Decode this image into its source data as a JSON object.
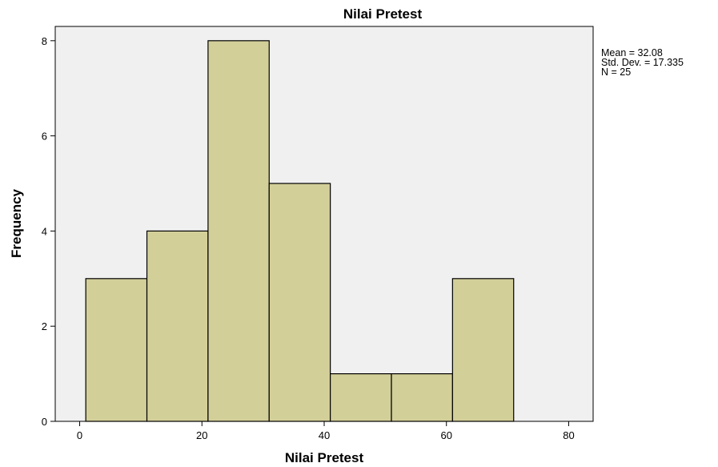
{
  "chart_data": {
    "type": "bar",
    "title": "Nilai Pretest",
    "xlabel": "Nilai Pretest",
    "ylabel": "Frequency",
    "bins": [
      {
        "start": 1,
        "end": 11,
        "count": 3
      },
      {
        "start": 11,
        "end": 21,
        "count": 4
      },
      {
        "start": 21,
        "end": 31,
        "count": 8
      },
      {
        "start": 31,
        "end": 41,
        "count": 5
      },
      {
        "start": 41,
        "end": 51,
        "count": 1
      },
      {
        "start": 51,
        "end": 61,
        "count": 1
      },
      {
        "start": 61,
        "end": 71,
        "count": 3
      }
    ],
    "xlim": [
      -4,
      84
    ],
    "ylim": [
      0,
      8.3
    ],
    "xticks": [
      0,
      20,
      40,
      60,
      80
    ],
    "yticks": [
      0,
      2,
      4,
      6,
      8
    ],
    "grid": false,
    "colors": {
      "bar_fill": "#d3cf99",
      "bar_stroke": "#000000",
      "plot_background": "#f0f0f0"
    },
    "stats": {
      "mean": "Mean = 32.08",
      "std": "Std. Dev. = 17.335",
      "n": "N = 25"
    }
  }
}
